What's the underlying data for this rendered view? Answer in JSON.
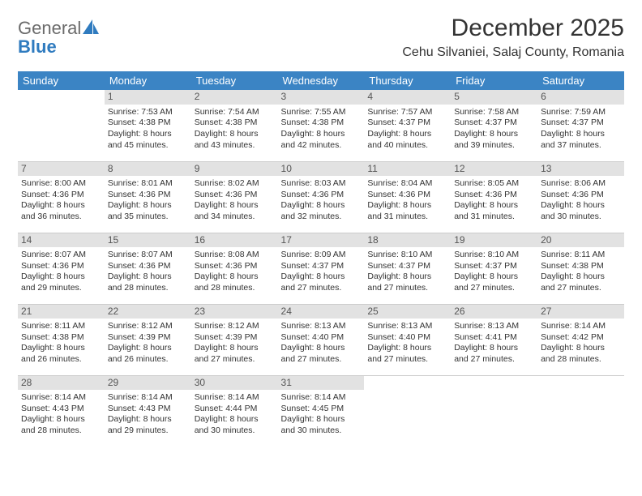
{
  "logo": {
    "general": "General",
    "blue": "Blue"
  },
  "title": "December 2025",
  "location": "Cehu Silvaniei, Salaj County, Romania",
  "days_of_week": [
    "Sunday",
    "Monday",
    "Tuesday",
    "Wednesday",
    "Thursday",
    "Friday",
    "Saturday"
  ],
  "header_bg": "#3b84c4",
  "daynum_bg": "#e2e2e2",
  "weeks": [
    [
      null,
      {
        "n": "1",
        "sunrise": "7:53 AM",
        "sunset": "4:38 PM",
        "dl1": "Daylight: 8 hours",
        "dl2": "and 45 minutes."
      },
      {
        "n": "2",
        "sunrise": "7:54 AM",
        "sunset": "4:38 PM",
        "dl1": "Daylight: 8 hours",
        "dl2": "and 43 minutes."
      },
      {
        "n": "3",
        "sunrise": "7:55 AM",
        "sunset": "4:38 PM",
        "dl1": "Daylight: 8 hours",
        "dl2": "and 42 minutes."
      },
      {
        "n": "4",
        "sunrise": "7:57 AM",
        "sunset": "4:37 PM",
        "dl1": "Daylight: 8 hours",
        "dl2": "and 40 minutes."
      },
      {
        "n": "5",
        "sunrise": "7:58 AM",
        "sunset": "4:37 PM",
        "dl1": "Daylight: 8 hours",
        "dl2": "and 39 minutes."
      },
      {
        "n": "6",
        "sunrise": "7:59 AM",
        "sunset": "4:37 PM",
        "dl1": "Daylight: 8 hours",
        "dl2": "and 37 minutes."
      }
    ],
    [
      {
        "n": "7",
        "sunrise": "8:00 AM",
        "sunset": "4:36 PM",
        "dl1": "Daylight: 8 hours",
        "dl2": "and 36 minutes."
      },
      {
        "n": "8",
        "sunrise": "8:01 AM",
        "sunset": "4:36 PM",
        "dl1": "Daylight: 8 hours",
        "dl2": "and 35 minutes."
      },
      {
        "n": "9",
        "sunrise": "8:02 AM",
        "sunset": "4:36 PM",
        "dl1": "Daylight: 8 hours",
        "dl2": "and 34 minutes."
      },
      {
        "n": "10",
        "sunrise": "8:03 AM",
        "sunset": "4:36 PM",
        "dl1": "Daylight: 8 hours",
        "dl2": "and 32 minutes."
      },
      {
        "n": "11",
        "sunrise": "8:04 AM",
        "sunset": "4:36 PM",
        "dl1": "Daylight: 8 hours",
        "dl2": "and 31 minutes."
      },
      {
        "n": "12",
        "sunrise": "8:05 AM",
        "sunset": "4:36 PM",
        "dl1": "Daylight: 8 hours",
        "dl2": "and 31 minutes."
      },
      {
        "n": "13",
        "sunrise": "8:06 AM",
        "sunset": "4:36 PM",
        "dl1": "Daylight: 8 hours",
        "dl2": "and 30 minutes."
      }
    ],
    [
      {
        "n": "14",
        "sunrise": "8:07 AM",
        "sunset": "4:36 PM",
        "dl1": "Daylight: 8 hours",
        "dl2": "and 29 minutes."
      },
      {
        "n": "15",
        "sunrise": "8:07 AM",
        "sunset": "4:36 PM",
        "dl1": "Daylight: 8 hours",
        "dl2": "and 28 minutes."
      },
      {
        "n": "16",
        "sunrise": "8:08 AM",
        "sunset": "4:36 PM",
        "dl1": "Daylight: 8 hours",
        "dl2": "and 28 minutes."
      },
      {
        "n": "17",
        "sunrise": "8:09 AM",
        "sunset": "4:37 PM",
        "dl1": "Daylight: 8 hours",
        "dl2": "and 27 minutes."
      },
      {
        "n": "18",
        "sunrise": "8:10 AM",
        "sunset": "4:37 PM",
        "dl1": "Daylight: 8 hours",
        "dl2": "and 27 minutes."
      },
      {
        "n": "19",
        "sunrise": "8:10 AM",
        "sunset": "4:37 PM",
        "dl1": "Daylight: 8 hours",
        "dl2": "and 27 minutes."
      },
      {
        "n": "20",
        "sunrise": "8:11 AM",
        "sunset": "4:38 PM",
        "dl1": "Daylight: 8 hours",
        "dl2": "and 27 minutes."
      }
    ],
    [
      {
        "n": "21",
        "sunrise": "8:11 AM",
        "sunset": "4:38 PM",
        "dl1": "Daylight: 8 hours",
        "dl2": "and 26 minutes."
      },
      {
        "n": "22",
        "sunrise": "8:12 AM",
        "sunset": "4:39 PM",
        "dl1": "Daylight: 8 hours",
        "dl2": "and 26 minutes."
      },
      {
        "n": "23",
        "sunrise": "8:12 AM",
        "sunset": "4:39 PM",
        "dl1": "Daylight: 8 hours",
        "dl2": "and 27 minutes."
      },
      {
        "n": "24",
        "sunrise": "8:13 AM",
        "sunset": "4:40 PM",
        "dl1": "Daylight: 8 hours",
        "dl2": "and 27 minutes."
      },
      {
        "n": "25",
        "sunrise": "8:13 AM",
        "sunset": "4:40 PM",
        "dl1": "Daylight: 8 hours",
        "dl2": "and 27 minutes."
      },
      {
        "n": "26",
        "sunrise": "8:13 AM",
        "sunset": "4:41 PM",
        "dl1": "Daylight: 8 hours",
        "dl2": "and 27 minutes."
      },
      {
        "n": "27",
        "sunrise": "8:14 AM",
        "sunset": "4:42 PM",
        "dl1": "Daylight: 8 hours",
        "dl2": "and 28 minutes."
      }
    ],
    [
      {
        "n": "28",
        "sunrise": "8:14 AM",
        "sunset": "4:43 PM",
        "dl1": "Daylight: 8 hours",
        "dl2": "and 28 minutes."
      },
      {
        "n": "29",
        "sunrise": "8:14 AM",
        "sunset": "4:43 PM",
        "dl1": "Daylight: 8 hours",
        "dl2": "and 29 minutes."
      },
      {
        "n": "30",
        "sunrise": "8:14 AM",
        "sunset": "4:44 PM",
        "dl1": "Daylight: 8 hours",
        "dl2": "and 30 minutes."
      },
      {
        "n": "31",
        "sunrise": "8:14 AM",
        "sunset": "4:45 PM",
        "dl1": "Daylight: 8 hours",
        "dl2": "and 30 minutes."
      },
      null,
      null,
      null
    ]
  ]
}
